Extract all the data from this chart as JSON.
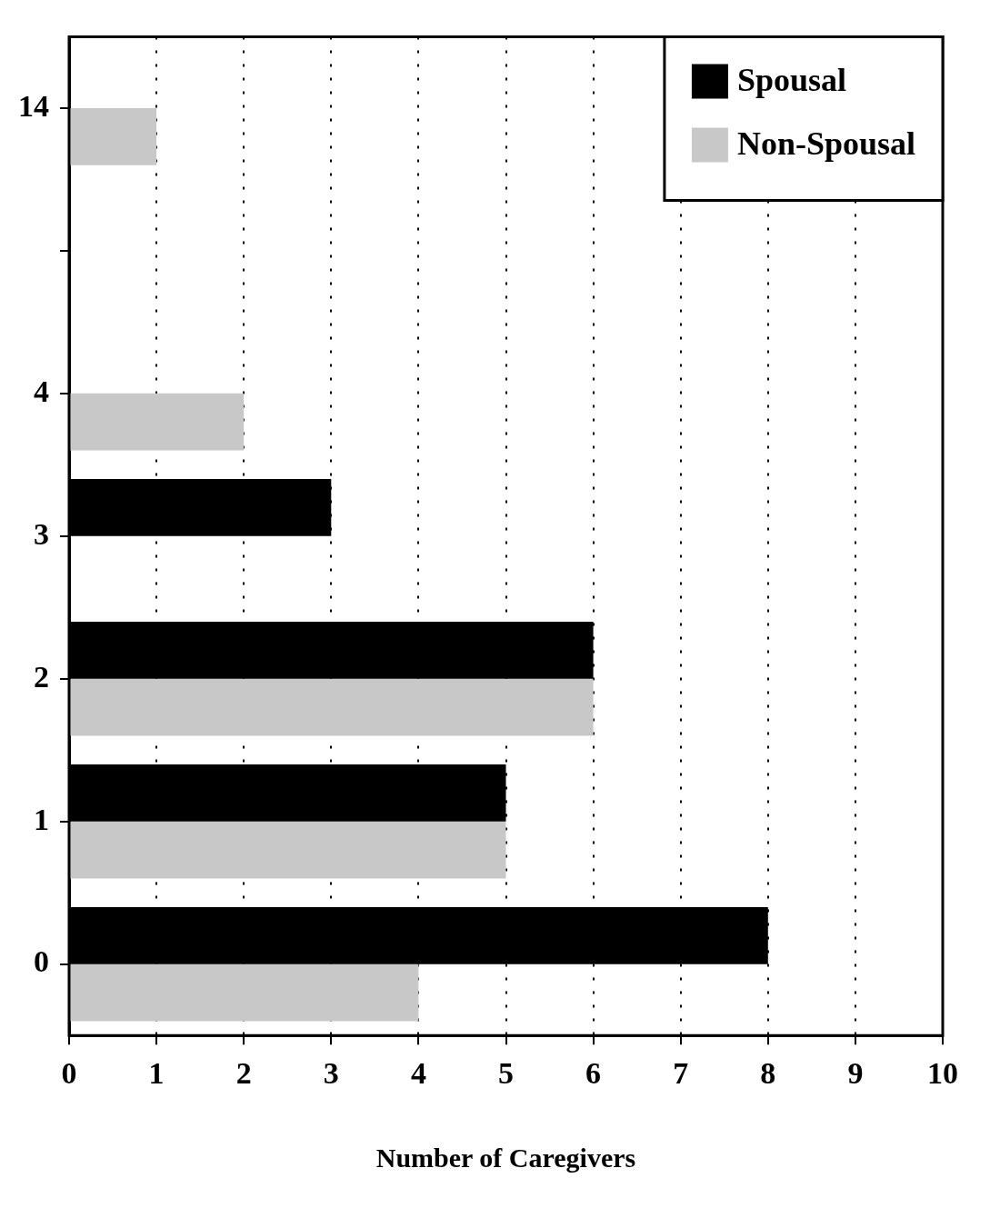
{
  "chart_data": {
    "type": "bar",
    "orientation": "horizontal",
    "xlabel": "Number of Caregivers",
    "categories": [
      "14",
      null,
      "4",
      "3",
      "2",
      "1",
      "0"
    ],
    "series": [
      {
        "name": "Spousal",
        "color": "#000000",
        "values": [
          null,
          null,
          null,
          3,
          6,
          5,
          8
        ]
      },
      {
        "name": "Non-Spousal",
        "color": "#c8c8c8",
        "values": [
          1,
          null,
          2,
          null,
          6,
          5,
          4
        ]
      }
    ],
    "xlim": [
      0,
      10
    ],
    "xticks": [
      0,
      1,
      2,
      3,
      4,
      5,
      6,
      7,
      8,
      9,
      10
    ],
    "grid": "x",
    "legend": "top right"
  }
}
